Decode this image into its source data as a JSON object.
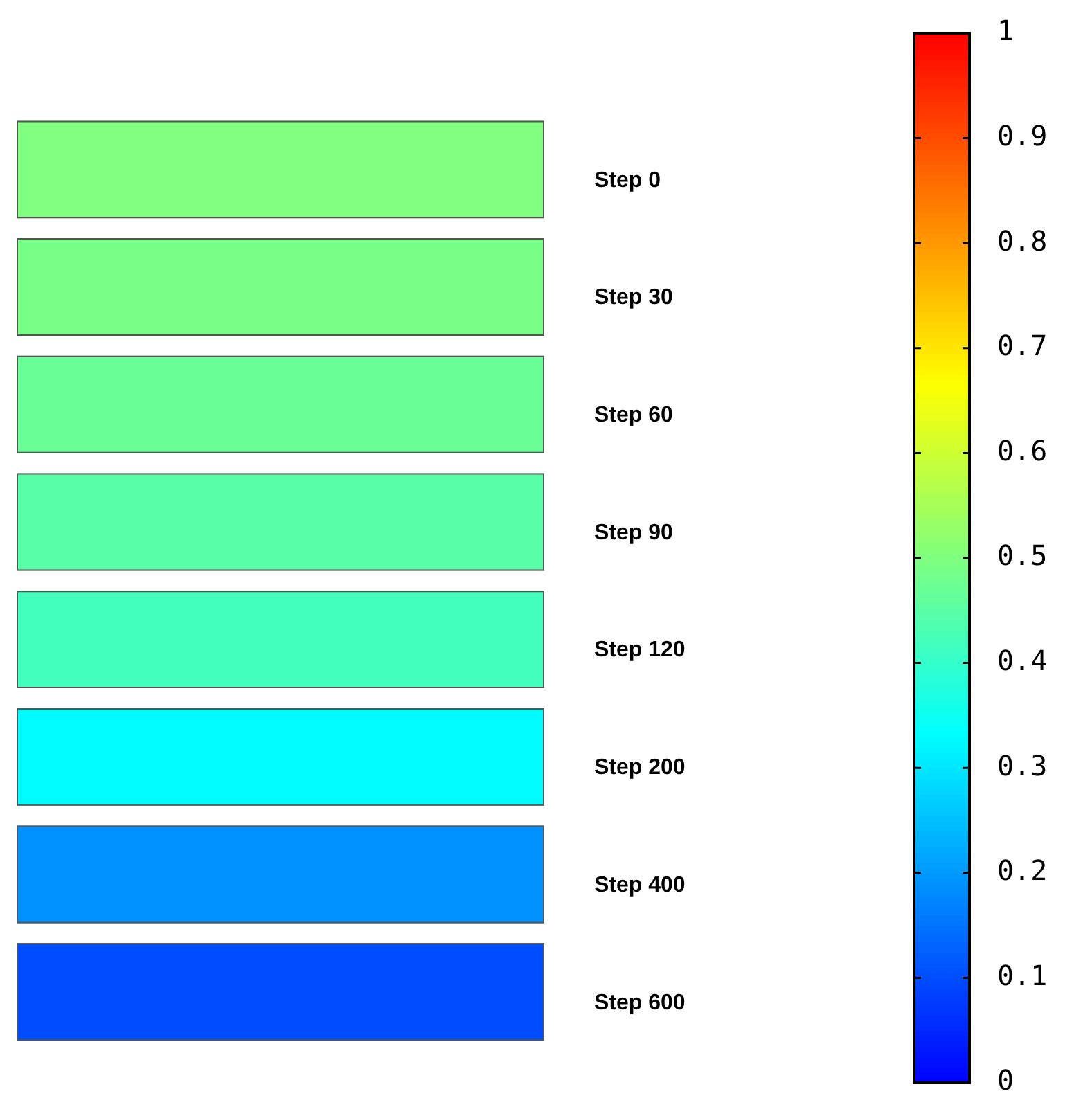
{
  "chart_data": {
    "type": "heatmap",
    "categories": [
      null
    ],
    "y_categories": [
      "Step 0",
      "Step 30",
      "Step 60",
      "Step 90",
      "Step 120",
      "Step 200",
      "Step 400",
      "Step 600"
    ],
    "cells": [
      [
        0.5
      ],
      [
        0.49
      ],
      [
        0.47
      ],
      [
        0.45
      ],
      [
        0.42
      ],
      [
        0.33
      ],
      [
        0.19
      ],
      [
        0.1
      ]
    ],
    "clim": [
      0,
      1
    ],
    "cticks": [
      0,
      0.1,
      0.2,
      0.3,
      0.4,
      0.5,
      0.6,
      0.7,
      0.8,
      0.9,
      1
    ]
  }
}
